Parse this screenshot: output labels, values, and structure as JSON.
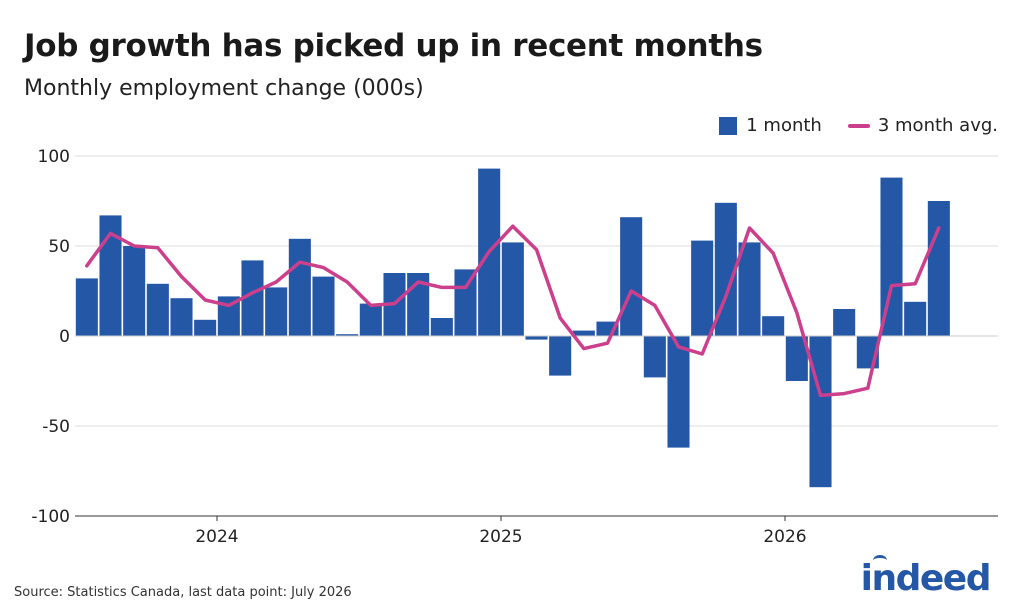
{
  "title": "Job growth has picked up in recent months",
  "subtitle": "Monthly employment change (000s)",
  "source": "Source: Statistics Canada, last data point: July 2026",
  "logo": "indeed",
  "colors": {
    "bar": "#2557a7",
    "line": "#cc3f8c",
    "grid": "#dddddd",
    "logo": "#2557a7"
  },
  "legend": {
    "bar_label": "1 month",
    "line_label": "3 month avg.",
    "position": "top-right"
  },
  "chart_data": {
    "type": "bar",
    "xlabel": "",
    "ylabel": "",
    "ylim": [
      -100,
      100
    ],
    "yticks": [
      100,
      50,
      0,
      -50,
      -100
    ],
    "grid": true,
    "categories": [
      "2023-07",
      "2023-08",
      "2023-09",
      "2023-10",
      "2023-11",
      "2023-12",
      "2024-01",
      "2024-02",
      "2024-03",
      "2024-04",
      "2024-05",
      "2024-06",
      "2024-07",
      "2024-08",
      "2024-09",
      "2024-10",
      "2024-11",
      "2024-12",
      "2025-01",
      "2025-02",
      "2025-03",
      "2025-04",
      "2025-05",
      "2025-06",
      "2025-07",
      "2025-08",
      "2025-09",
      "2025-10",
      "2025-11",
      "2025-12",
      "2026-01",
      "2026-02",
      "2026-03",
      "2026-04",
      "2026-05",
      "2026-06",
      "2026-07"
    ],
    "xtick_labels": [
      {
        "label": "2024",
        "category": "2024-01"
      },
      {
        "label": "2025",
        "category": "2025-01"
      },
      {
        "label": "2026",
        "category": "2026-01"
      }
    ],
    "series": [
      {
        "name": "1 month",
        "type": "bar",
        "values": [
          32,
          67,
          50,
          29,
          21,
          9,
          22,
          42,
          27,
          54,
          33,
          1,
          18,
          35,
          35,
          10,
          37,
          93,
          52,
          -2,
          -22,
          3,
          8,
          66,
          -23,
          -62,
          53,
          74,
          52,
          11,
          -25,
          -84,
          15,
          -18,
          88,
          19,
          75
        ]
      },
      {
        "name": "3 month avg.",
        "type": "line",
        "values": [
          39,
          57,
          50,
          49,
          33,
          20,
          17,
          24,
          30,
          41,
          38,
          30,
          17,
          18,
          30,
          27,
          27,
          47,
          61,
          48,
          10,
          -7,
          -4,
          25,
          17,
          -6,
          -10,
          22,
          60,
          46,
          13,
          -33,
          -32,
          -29,
          28,
          29,
          60
        ]
      }
    ]
  }
}
